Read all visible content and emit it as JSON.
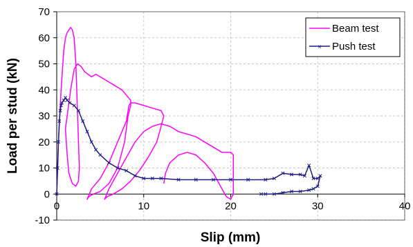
{
  "chart_data": {
    "type": "line",
    "xlabel": "Slip (mm)",
    "ylabel": "Load per stud (kN)",
    "xlim": [
      0,
      40
    ],
    "ylim": [
      -10,
      70
    ],
    "x_ticks": [
      "0",
      "10",
      "20",
      "30",
      "40"
    ],
    "y_ticks": [
      "-10",
      "0",
      "10",
      "20",
      "30",
      "40",
      "50",
      "60",
      "70"
    ],
    "grid": "major gridlines, dashed",
    "legend_position": "top-right",
    "series": [
      {
        "name": "Beam test",
        "color": "#ff00ff",
        "marker": "none",
        "x": [
          0,
          0.2,
          0.5,
          0.8,
          1.0,
          1.2,
          1.4,
          1.6,
          1.8,
          2.0,
          2.2,
          2.4,
          2.6,
          2.5,
          2.2,
          1.8,
          1.4,
          1.2,
          1.0,
          1.2,
          1.6,
          2.0,
          2.4,
          2.8,
          3.2,
          3.6,
          4.0,
          4.5,
          5.0,
          5.5,
          6.0,
          6.5,
          7.0,
          7.5,
          8.0,
          8.5,
          8.5,
          8.2,
          7.8,
          7.0,
          6.0,
          5.0,
          4.2,
          3.7,
          3.5,
          4.0,
          5.0,
          6.0,
          7.0,
          8.0,
          8.3,
          8.5,
          9.0,
          10.0,
          11.0,
          12.0,
          12.3,
          12.0,
          11.5,
          10.5,
          9.5,
          8.5,
          7.5,
          6.5,
          5.8,
          5.5,
          6.0,
          7.0,
          8.0,
          9.0,
          10.0,
          11.0,
          12.0,
          13.0,
          13.5,
          14.0,
          15.0,
          16.0,
          17.0,
          18.0,
          19.0,
          20.0,
          20.3,
          20.3,
          20.0,
          19.5,
          19.0,
          18.0,
          17.0,
          16.0,
          15.0,
          14.0,
          13.0,
          12.5,
          12.3
        ],
        "y": [
          0,
          20,
          40,
          55,
          60,
          62,
          63,
          64,
          63,
          60,
          50,
          30,
          10,
          5,
          3,
          4,
          8,
          15,
          25,
          30,
          40,
          48,
          50,
          49,
          47,
          46,
          45,
          46,
          45,
          44,
          43,
          42,
          41,
          40,
          38,
          36,
          34,
          30,
          20,
          10,
          4,
          1,
          0,
          -1,
          -2,
          2,
          6,
          12,
          20,
          28,
          34,
          35,
          35,
          34,
          33,
          32,
          30,
          26,
          20,
          14,
          9,
          5,
          2,
          0,
          -1,
          -2,
          2,
          8,
          14,
          20,
          24,
          26,
          27,
          26,
          25,
          24,
          23,
          22,
          20,
          18,
          16,
          16,
          15,
          0,
          -2,
          -1,
          2,
          8,
          12,
          15,
          16,
          15,
          12,
          8,
          4
        ]
      },
      {
        "name": "Push test",
        "color": "#1a1a80",
        "marker": "x",
        "x": [
          0,
          0.1,
          0.2,
          0.3,
          0.4,
          0.5,
          0.6,
          0.8,
          1.0,
          1.2,
          1.5,
          2.0,
          2.5,
          3.0,
          3.5,
          4.0,
          4.5,
          5.0,
          6.0,
          7.0,
          8.0,
          9.0,
          10.0,
          11.0,
          12.0,
          14.0,
          16.0,
          18.0,
          20.0,
          22.0,
          24.0,
          25.0,
          26.0,
          27.0,
          28.0,
          28.5,
          29.0,
          29.5,
          30.0,
          30.3,
          30.0,
          29.5,
          29.0,
          28.0,
          27.0,
          26.0,
          25.0,
          24.0,
          23.5
        ],
        "y": [
          0,
          10,
          20,
          28,
          32,
          34,
          35,
          36,
          37,
          36,
          35,
          34,
          32,
          28,
          24,
          20,
          17,
          15,
          12,
          10,
          9,
          7,
          6,
          6,
          6,
          5.5,
          5.5,
          5.5,
          5.5,
          5.5,
          5.5,
          6,
          8,
          7.5,
          7.5,
          7,
          11,
          6,
          6,
          7,
          3,
          2,
          1.5,
          1,
          1,
          0.5,
          0,
          0,
          0
        ]
      }
    ]
  }
}
